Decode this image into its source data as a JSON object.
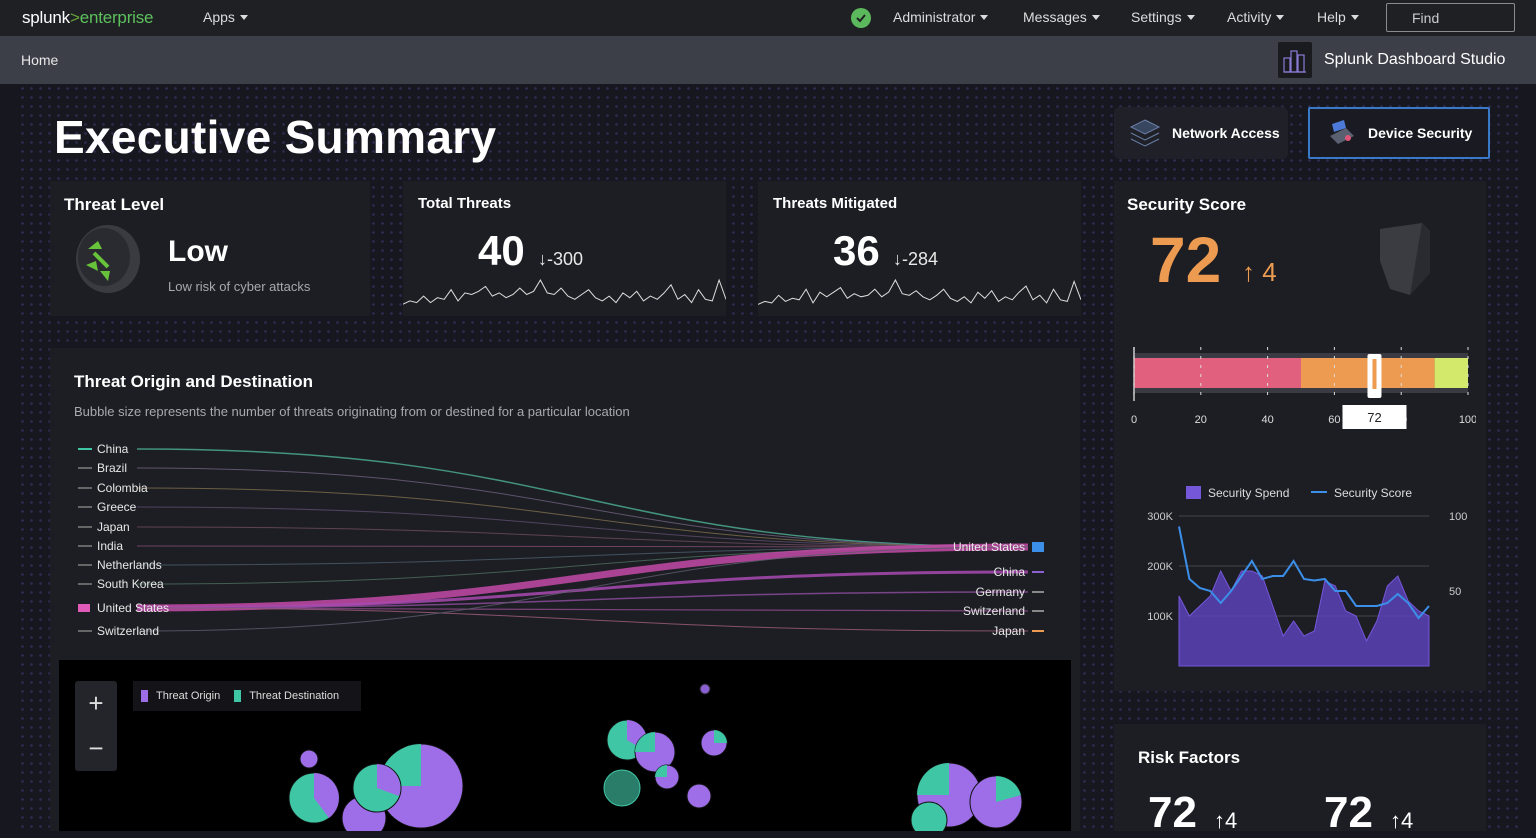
{
  "nav": {
    "logo_a": "splunk",
    "logo_b": ">",
    "logo_c": "enterprise",
    "apps": "Apps",
    "administrator": "Administrator",
    "messages": "Messages",
    "settings": "Settings",
    "activity": "Activity",
    "help": "Help",
    "find": "Find"
  },
  "appbar": {
    "home": "Home",
    "title": "Splunk Dashboard Studio"
  },
  "page": {
    "title": "Executive Summary",
    "tab_network": "Network Access",
    "tab_device": "Device Security"
  },
  "threat_level": {
    "title": "Threat Level",
    "value": "Low",
    "caption": "Low risk of cyber attacks"
  },
  "total_threats": {
    "title": "Total Threats",
    "value": "40",
    "delta": "-300",
    "trend": [
      3,
      5,
      4,
      8,
      4,
      7,
      6,
      12,
      5,
      10,
      9,
      11,
      14,
      8,
      10,
      7,
      9,
      13,
      9,
      11,
      18,
      10,
      9,
      13,
      8,
      6,
      9,
      12,
      7,
      5,
      8,
      4,
      10,
      7,
      11,
      5,
      8,
      6,
      10,
      15,
      6,
      9,
      4,
      12,
      6,
      5,
      18,
      6
    ]
  },
  "threats_mitigated": {
    "title": "Threats Mitigated",
    "value": "36",
    "delta": "-284",
    "trend": [
      3,
      5,
      4,
      9,
      5,
      7,
      6,
      13,
      4,
      11,
      8,
      11,
      14,
      7,
      10,
      8,
      9,
      13,
      8,
      11,
      19,
      10,
      9,
      12,
      8,
      6,
      9,
      13,
      7,
      5,
      8,
      4,
      11,
      7,
      12,
      5,
      8,
      6,
      11,
      15,
      6,
      9,
      4,
      13,
      6,
      5,
      18,
      6
    ]
  },
  "security_score": {
    "title": "Security Score",
    "value": "72",
    "delta": "4",
    "gauge": {
      "min": 0,
      "max": 100,
      "value": 72,
      "label": "72",
      "bands": [
        {
          "to": 50,
          "color": "#e0607e"
        },
        {
          "to": 90,
          "color": "#ec9b50"
        },
        {
          "to": 100,
          "color": "#d2e96b"
        }
      ],
      "ticks": [
        "0",
        "20",
        "40",
        "60",
        "80",
        "100"
      ]
    }
  },
  "sankey": {
    "title": "Threat Origin and Destination",
    "subtitle": "Bubble size represents the number of threats originating from or destined for a particular location",
    "sources": [
      "China",
      "Brazil",
      "Colombia",
      "Greece",
      "Japan",
      "India",
      "Netherlands",
      "South Korea",
      "United States",
      "Switzerland"
    ],
    "targets": [
      "United States",
      "China",
      "Germany",
      "Switzerland",
      "Japan"
    ]
  },
  "map": {
    "legend_origin": "Threat Origin",
    "legend_destination": "Threat Destination",
    "zoom_in": "+",
    "zoom_out": "−"
  },
  "chart_data": {
    "type": "area",
    "x": [
      1,
      2,
      3,
      4,
      5,
      6,
      7,
      8,
      9,
      10,
      11,
      12,
      13,
      14,
      15,
      16,
      17,
      18,
      19,
      20,
      21,
      22,
      23,
      24,
      25
    ],
    "series": [
      {
        "name": "Security Spend",
        "type": "area",
        "axis": "left",
        "values": [
          140000,
          100000,
          120000,
          140000,
          190000,
          150000,
          190000,
          190000,
          180000,
          120000,
          60000,
          90000,
          60000,
          70000,
          170000,
          160000,
          110000,
          100000,
          50000,
          90000,
          160000,
          180000,
          130000,
          110000,
          100000
        ]
      },
      {
        "name": "Security Score",
        "type": "line",
        "axis": "right",
        "values": [
          93,
          58,
          52,
          50,
          42,
          50,
          60,
          70,
          58,
          60,
          60,
          70,
          58,
          57,
          58,
          50,
          50,
          40,
          40,
          40,
          42,
          48,
          42,
          32,
          40
        ]
      }
    ],
    "left_axis": {
      "ticks": [
        "300K",
        "200K",
        "100K"
      ],
      "ylim": [
        0,
        300000
      ]
    },
    "right_axis": {
      "ticks": [
        "100",
        "50"
      ],
      "ylim": [
        0,
        100
      ]
    },
    "legend": "top"
  },
  "risk_factors": {
    "title": "Risk Factors",
    "value1": "72",
    "value2": "72"
  }
}
